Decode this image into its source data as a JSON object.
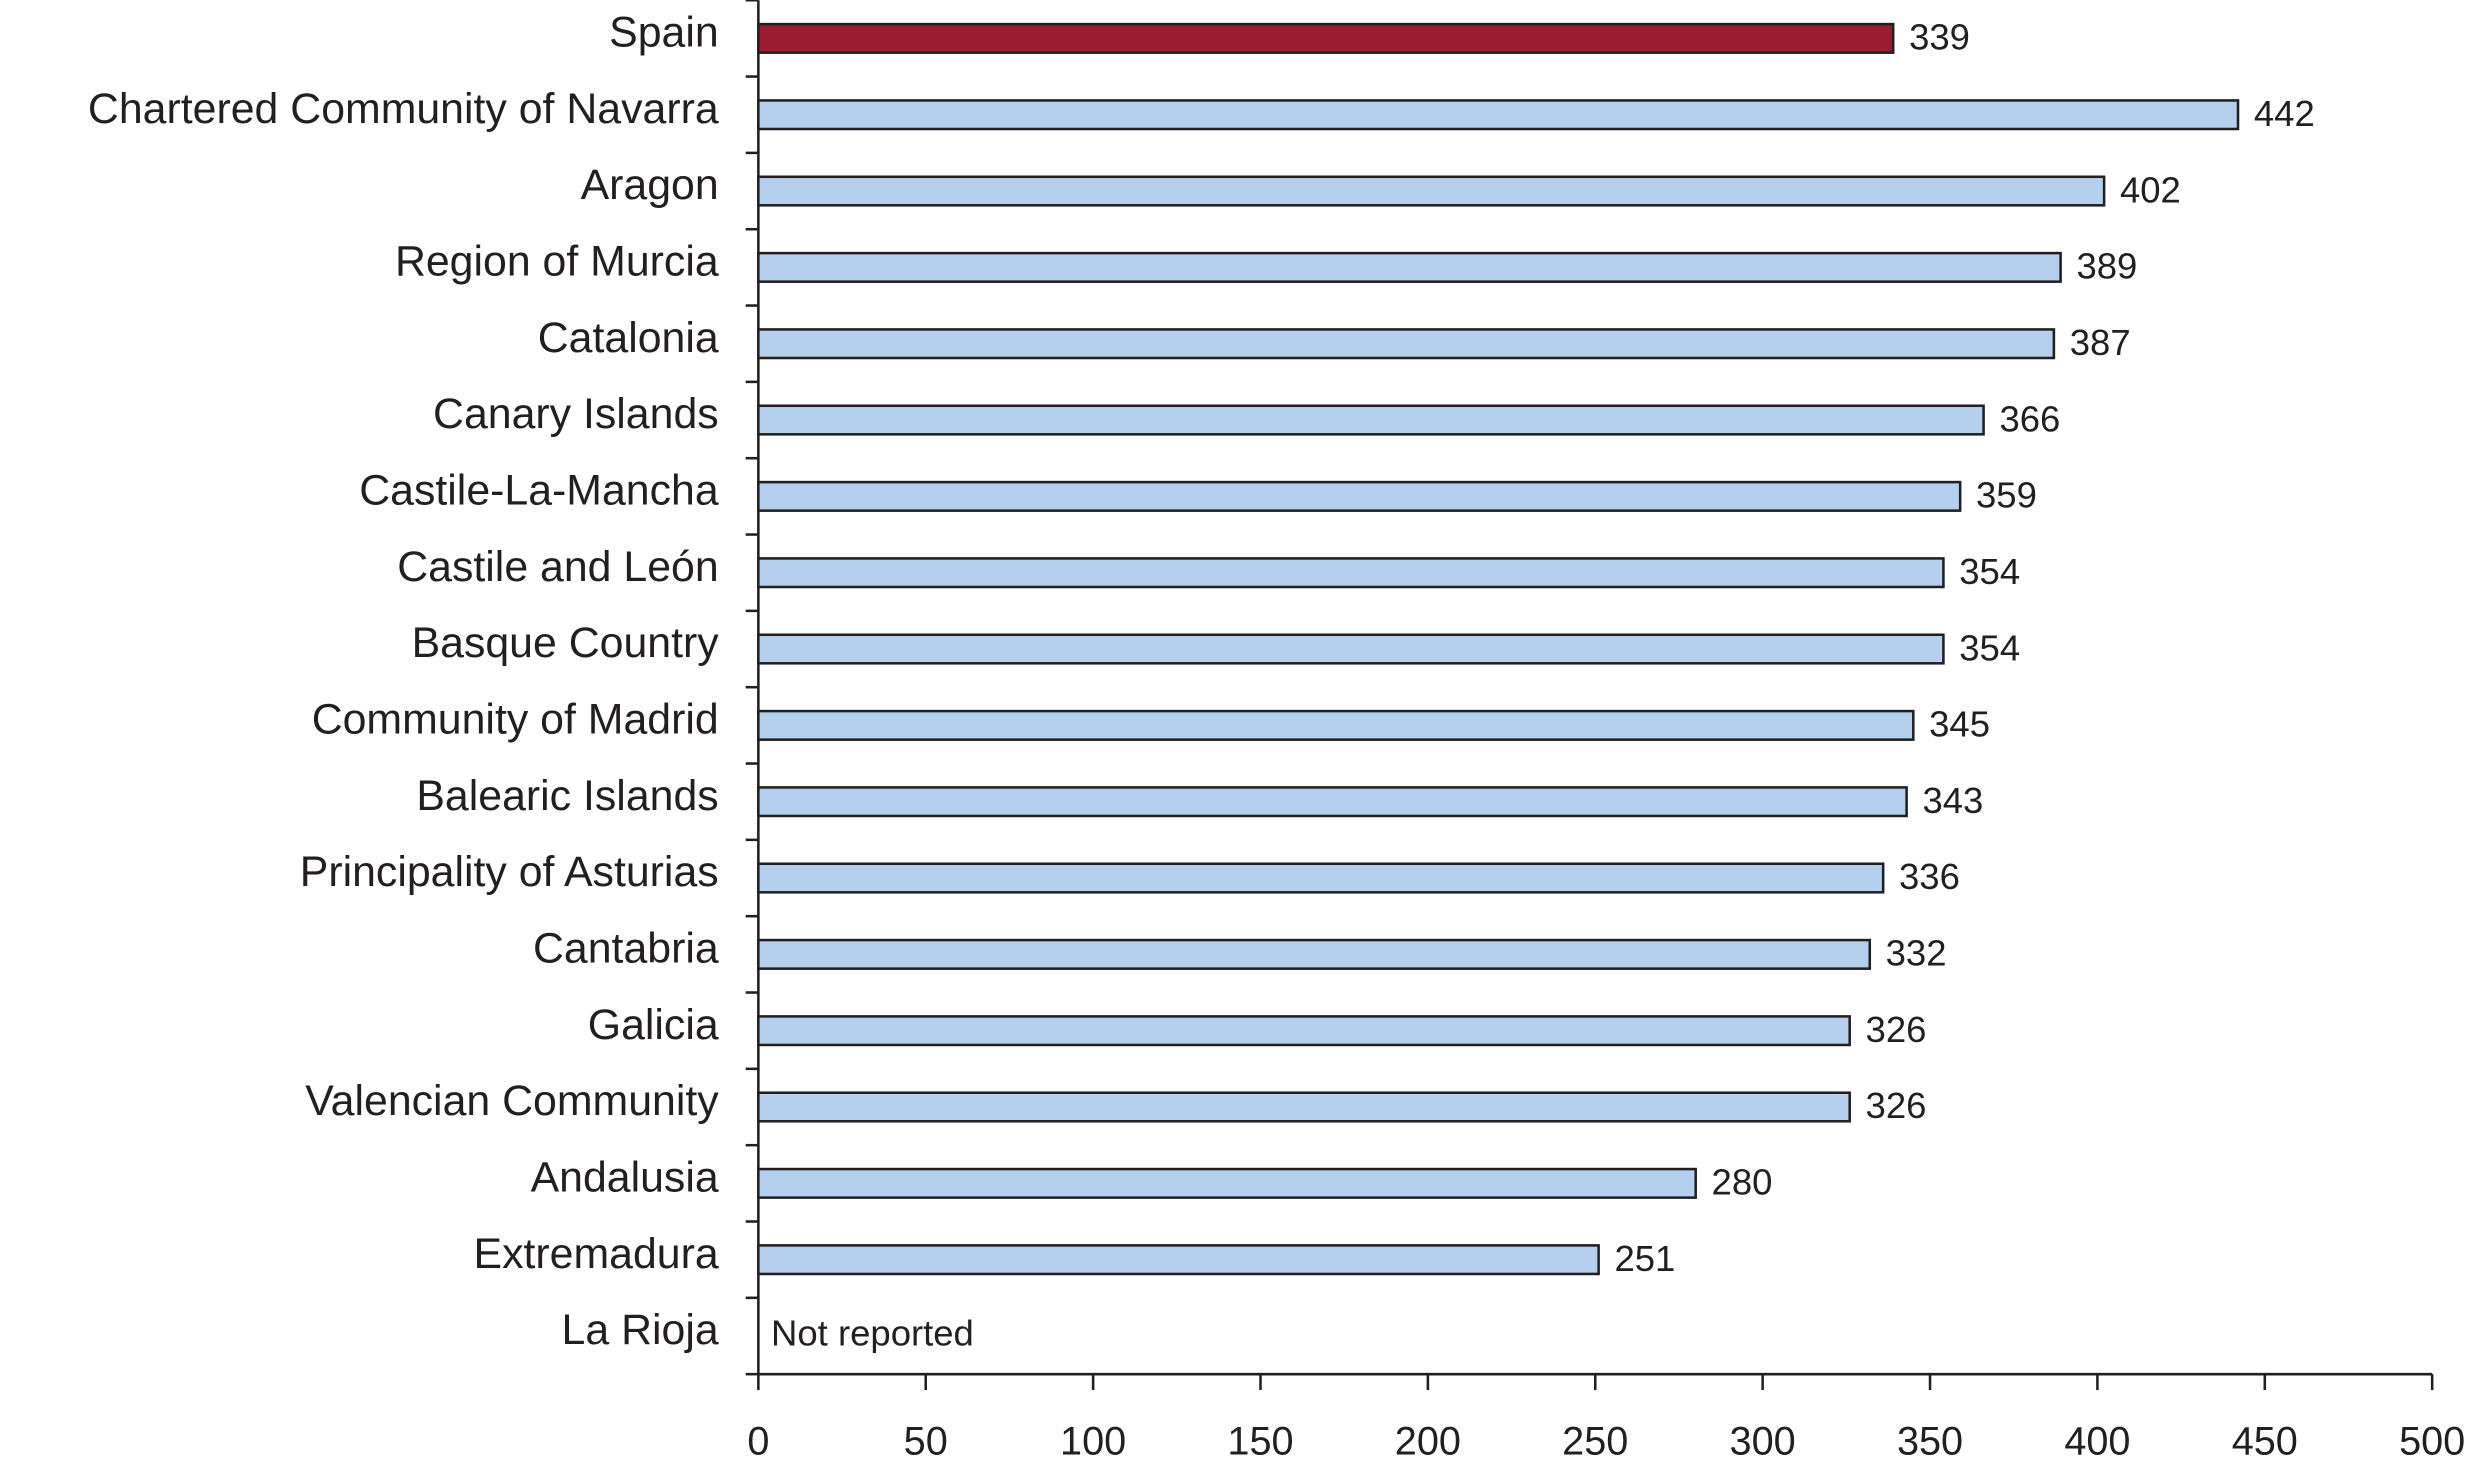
{
  "chart_data": {
    "type": "hbar",
    "categories": [
      "Spain",
      "Chartered Community of Navarra",
      "Aragon",
      "Region of Murcia",
      "Catalonia",
      "Canary Islands",
      "Castile-La-Mancha",
      "Castile and León",
      "Basque Country",
      "Community of Madrid",
      "Balearic Islands",
      "Principality of Asturias",
      "Cantabria",
      "Galicia",
      "Valencian Community",
      "Andalusia",
      "Extremadura",
      "La Rioja"
    ],
    "values": [
      339,
      442,
      402,
      389,
      387,
      366,
      359,
      354,
      354,
      345,
      343,
      336,
      332,
      326,
      326,
      280,
      251,
      null
    ],
    "colors": [
      "#9b1c31",
      "#b5d0ee",
      "#b5d0ee",
      "#b5d0ee",
      "#b5d0ee",
      "#b5d0ee",
      "#b5d0ee",
      "#b5d0ee",
      "#b5d0ee",
      "#b5d0ee",
      "#b5d0ee",
      "#b5d0ee",
      "#b5d0ee",
      "#b5d0ee",
      "#b5d0ee",
      "#b5d0ee",
      "#b5d0ee",
      "#b5d0ee"
    ],
    "annotation": "Not reported",
    "xlim": [
      0,
      500
    ],
    "xticks": [
      0,
      50,
      100,
      150,
      200,
      250,
      300,
      350,
      400,
      450,
      500
    ]
  }
}
